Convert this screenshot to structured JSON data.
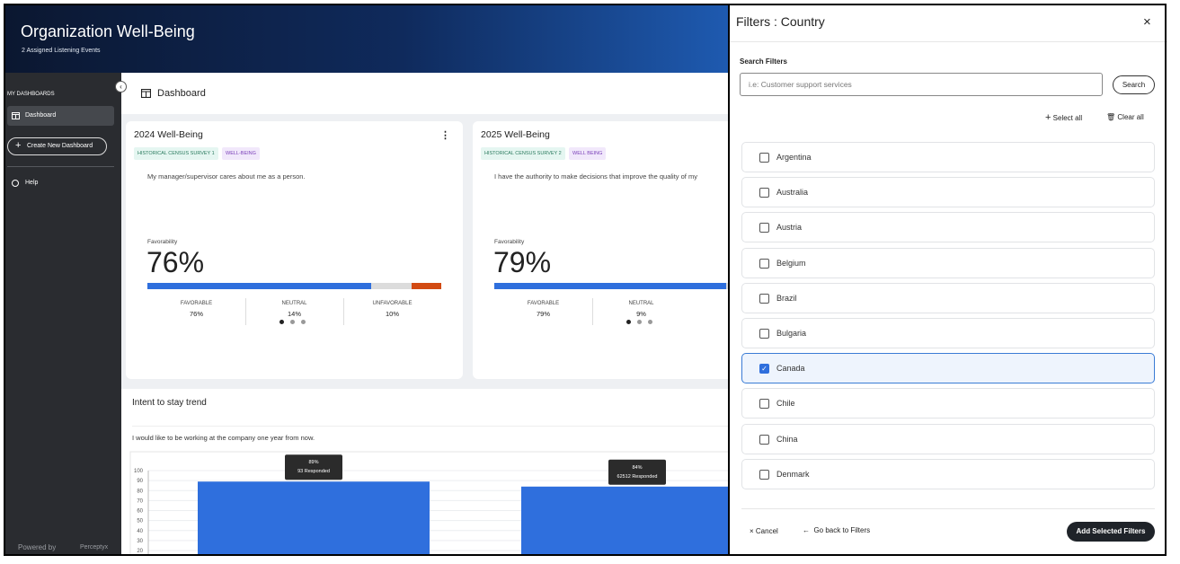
{
  "header": {
    "title": "Organization Well-Being",
    "subtitle": "2 Assigned Listening Events"
  },
  "sidebar": {
    "section": "MY DASHBOARDS",
    "items": [
      "Dashboard"
    ],
    "create_button": "Create New Dashboard",
    "help": "Help",
    "powered_by": "Powered by",
    "brand": "Perceptyx"
  },
  "topbar": {
    "title": "Dashboard"
  },
  "cards": [
    {
      "title": "2024 Well-Being",
      "tags": [
        "HISTORICAL CENSUS SURVEY 1",
        "WELL-BEING"
      ],
      "question": "My manager/supervisor cares about me as a person.",
      "metric_label": "Favorability",
      "metric": "76%",
      "segments": [
        {
          "label": "FAVORABLE",
          "value": 76,
          "value_label": "76%",
          "color": "#2f6fdd"
        },
        {
          "label": "NEUTRAL",
          "value": 14,
          "value_label": "14%",
          "color": "#dcdcdc"
        },
        {
          "label": "UNFAVORABLE",
          "value": 10,
          "value_label": "10%",
          "color": "#d24a12"
        }
      ]
    },
    {
      "title": "2025 Well-Being",
      "tags": [
        "HISTORICAL CENSUS SURVEY 2",
        "WELL BEING"
      ],
      "question": "I have the authority to make decisions that improve the quality of my",
      "metric_label": "Favorability",
      "metric": "79%",
      "segments": [
        {
          "label": "FAVORABLE",
          "value": 79,
          "value_label": "79%",
          "color": "#2f6fdd"
        },
        {
          "label": "NEUTRAL",
          "value": 9,
          "value_label": "9%",
          "color": "#dcdcdc"
        }
      ]
    }
  ],
  "trend": {
    "title": "Intent to stay trend",
    "question": "I would like to be working at the company one year from now."
  },
  "chart_data": {
    "type": "bar",
    "values": [
      89,
      84
    ],
    "value_labels": [
      "89%",
      "84%"
    ],
    "tooltips": [
      "93 Responded",
      "62512 Responded"
    ],
    "color": "#2f6fdd",
    "ylim": [
      0,
      100
    ],
    "yticks": [
      20,
      30,
      40,
      50,
      60,
      70,
      80,
      90,
      100
    ],
    "grid": true
  },
  "filter_panel": {
    "title": "Filters : Country",
    "search_label": "Search Filters",
    "search_placeholder": "i.e: Customer support services",
    "search_button": "Search",
    "select_all": "Select all",
    "clear_all": "Clear all",
    "options": [
      {
        "label": "Argentina",
        "checked": false
      },
      {
        "label": "Australia",
        "checked": false
      },
      {
        "label": "Austria",
        "checked": false
      },
      {
        "label": "Belgium",
        "checked": false
      },
      {
        "label": "Brazil",
        "checked": false
      },
      {
        "label": "Bulgaria",
        "checked": false
      },
      {
        "label": "Canada",
        "checked": true
      },
      {
        "label": "Chile",
        "checked": false
      },
      {
        "label": "China",
        "checked": false
      },
      {
        "label": "Denmark",
        "checked": false
      }
    ],
    "cancel": "Cancel",
    "back": "Go back to Filters",
    "submit": "Add Selected Filters"
  }
}
